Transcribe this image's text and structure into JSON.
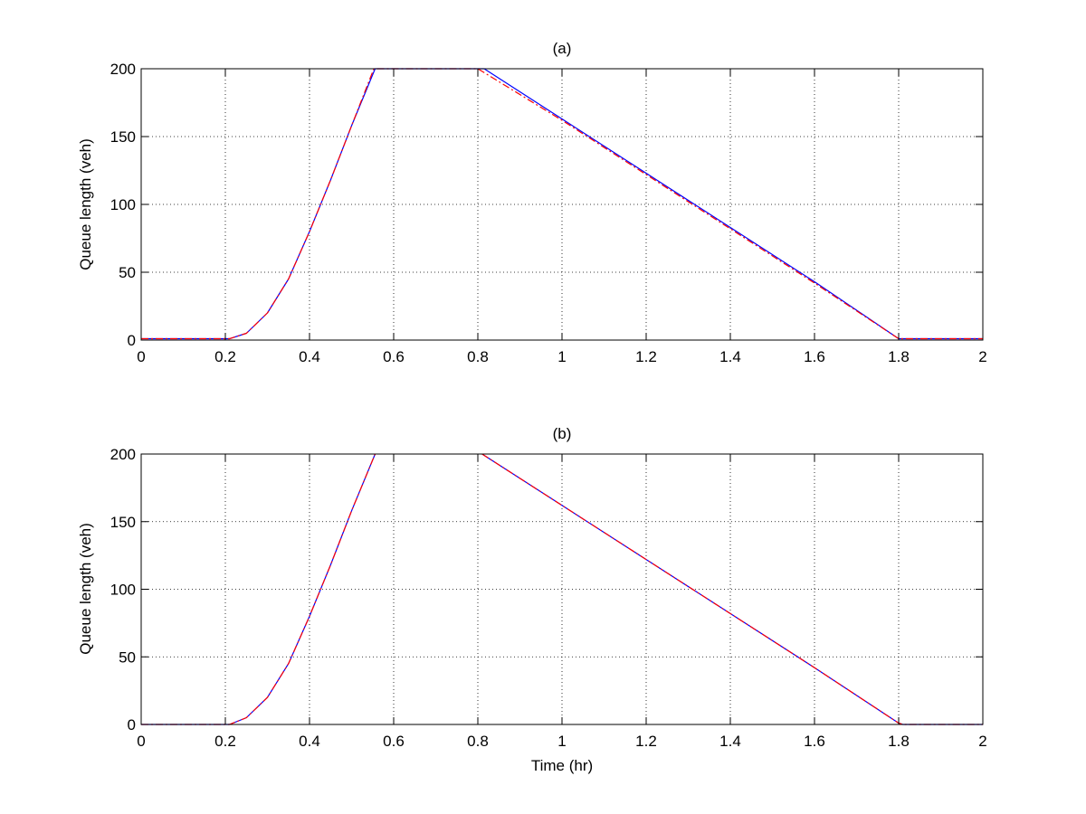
{
  "chart_data": [
    {
      "type": "line",
      "title": "(a)",
      "xlabel": "",
      "ylabel": "Queue length (veh)",
      "xlim": [
        0,
        2
      ],
      "ylim": [
        0,
        200
      ],
      "xticks": [
        0,
        0.2,
        0.4,
        0.6,
        0.8,
        1,
        1.2,
        1.4,
        1.6,
        1.8,
        2
      ],
      "xtick_labels": [
        "0",
        "0.2",
        "0.4",
        "0.6",
        "0.8",
        "1",
        "1.2",
        "1.4",
        "1.6",
        "1.8",
        "2"
      ],
      "yticks": [
        0,
        50,
        100,
        150,
        200
      ],
      "ytick_labels": [
        "0",
        "50",
        "100",
        "150",
        "200"
      ],
      "grid": true,
      "series": [
        {
          "color": "#0000ff",
          "style": "solid",
          "x": [
            0,
            0.2,
            0.21,
            0.25,
            0.3,
            0.35,
            0.4,
            0.45,
            0.5,
            0.556,
            0.6,
            0.7,
            0.815,
            1.0,
            1.2,
            1.4,
            1.6,
            1.8,
            1.81,
            2.0
          ],
          "y": [
            1,
            1,
            1,
            5,
            20,
            45,
            80,
            118,
            158,
            200,
            200,
            200,
            200,
            163,
            123,
            83,
            43,
            1,
            1,
            1
          ]
        },
        {
          "color": "#ff0000",
          "style": "dashdot",
          "x": [
            0,
            0.2,
            0.21,
            0.25,
            0.3,
            0.35,
            0.4,
            0.45,
            0.5,
            0.553,
            0.6,
            0.7,
            0.8,
            1.0,
            1.2,
            1.4,
            1.6,
            1.8,
            1.81,
            2.0
          ],
          "y": [
            1,
            1,
            1,
            5,
            20,
            45,
            80,
            118,
            158,
            200,
            200,
            200,
            200,
            162,
            122,
            82,
            42,
            1,
            1,
            1
          ]
        }
      ]
    },
    {
      "type": "line",
      "title": "(b)",
      "xlabel": "Time (hr)",
      "ylabel": "Queue length (veh)",
      "xlim": [
        0,
        2
      ],
      "ylim": [
        0,
        200
      ],
      "xticks": [
        0,
        0.2,
        0.4,
        0.6,
        0.8,
        1,
        1.2,
        1.4,
        1.6,
        1.8,
        2
      ],
      "xtick_labels": [
        "0",
        "0.2",
        "0.4",
        "0.6",
        "0.8",
        "1",
        "1.2",
        "1.4",
        "1.6",
        "1.8",
        "2"
      ],
      "yticks": [
        0,
        50,
        100,
        150,
        200
      ],
      "ytick_labels": [
        "0",
        "50",
        "100",
        "150",
        "200"
      ],
      "grid": true,
      "series": [
        {
          "color": "#0000ff",
          "style": "solid",
          "segments": [
            {
              "x": [
                0,
                0.2,
                0.21,
                0.25,
                0.3,
                0.35,
                0.4,
                0.45,
                0.5,
                0.556
              ],
              "y": [
                0,
                0,
                0,
                5,
                20,
                45,
                80,
                118,
                158,
                200
              ]
            },
            {
              "x": [
                0.81,
                1.0,
                1.2,
                1.4,
                1.6,
                1.8,
                1.81,
                2.0
              ],
              "y": [
                200,
                162,
                122,
                82,
                42,
                1,
                0,
                0
              ]
            }
          ]
        },
        {
          "color": "#ff0000",
          "style": "dashdot",
          "segments": [
            {
              "x": [
                0,
                0.2,
                0.21,
                0.25,
                0.3,
                0.35,
                0.4,
                0.45,
                0.5,
                0.556
              ],
              "y": [
                0,
                0,
                0,
                5,
                20,
                45,
                80,
                118,
                158,
                200
              ]
            },
            {
              "x": [
                0.81,
                1.0,
                1.2,
                1.4,
                1.6,
                1.8,
                1.81,
                2.0
              ],
              "y": [
                200,
                162,
                122,
                82,
                42,
                1,
                0,
                0
              ]
            }
          ]
        }
      ]
    }
  ]
}
